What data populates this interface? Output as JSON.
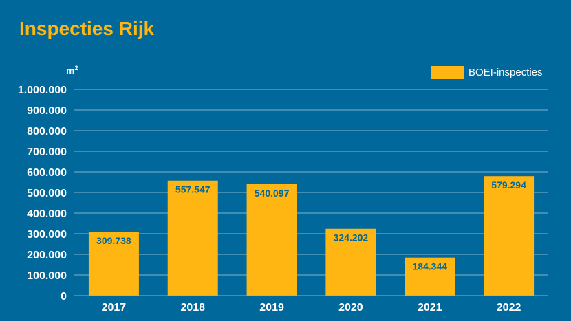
{
  "colors": {
    "background": "#01689b",
    "bar": "#ffb612",
    "grid": "#7fb3cd",
    "text": "#ffffff",
    "value_label": "#01689b",
    "title": "#ffb612"
  },
  "chart_data": {
    "type": "bar",
    "title": "Inspecties Rijk",
    "ylabel": "m",
    "ylabel_superscript": "2",
    "categories": [
      "2017",
      "2018",
      "2019",
      "2020",
      "2021",
      "2022"
    ],
    "series": [
      {
        "name": "BOEI-inspecties",
        "values": [
          309738,
          557547,
          540097,
          324202,
          184344,
          579294
        ]
      }
    ],
    "value_labels": [
      "309.738",
      "557.547",
      "540.097",
      "324.202",
      "184.344",
      "579.294"
    ],
    "ylim": [
      0,
      1000000
    ],
    "yticks": [
      0,
      100000,
      200000,
      300000,
      400000,
      500000,
      600000,
      700000,
      800000,
      900000,
      1000000
    ],
    "ytick_labels": [
      "0",
      "100.000",
      "200.000",
      "300.000",
      "400.000",
      "500.000",
      "600.000",
      "700.000",
      "800.000",
      "900.000",
      "1.000.000"
    ],
    "grid": true,
    "legend_position": "top-right"
  }
}
